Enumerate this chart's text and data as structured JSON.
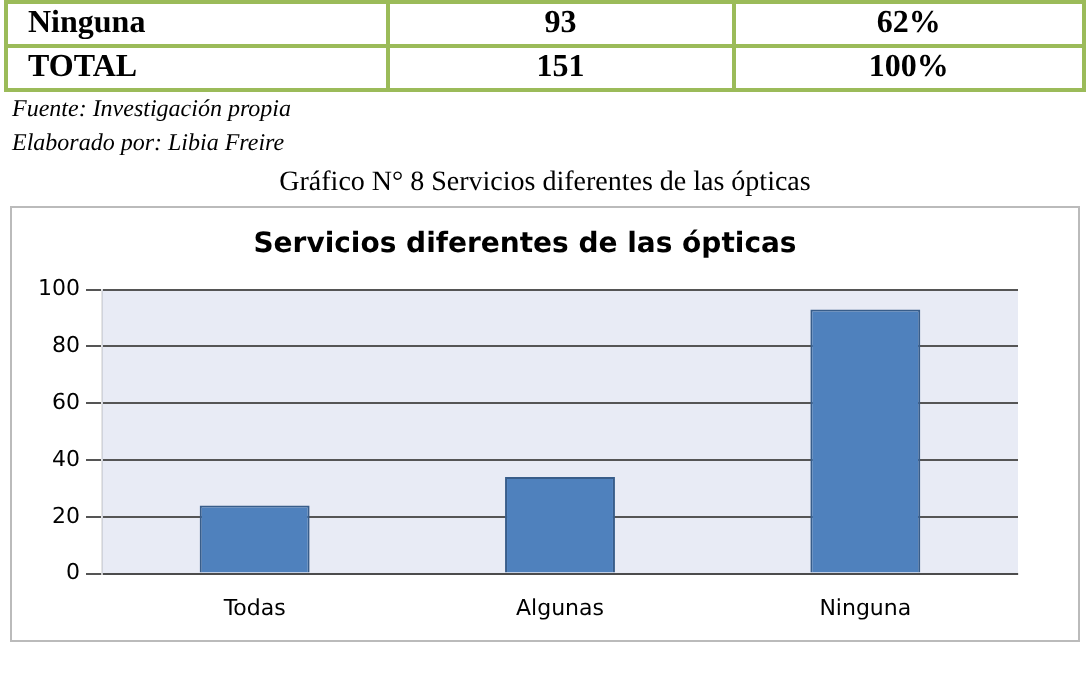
{
  "chart_data": {
    "type": "bar",
    "title": "Servicios diferentes de las ópticas",
    "categories": [
      "Todas",
      "Algunas",
      "Ninguna"
    ],
    "values": [
      24,
      34,
      93
    ],
    "color": "#4f81bd",
    "ylim": [
      0,
      100
    ],
    "yticks": [
      0,
      20,
      40,
      60,
      80,
      100
    ],
    "grid": "y",
    "annotations": [
      "Ninguna",
      "93",
      "62%",
      "TOTAL",
      "151",
      "100%",
      "Fuente: Investigación propia",
      "Elaborado por: Libia Freire",
      "Gráfico N° 8 Servicios diferentes de las ópticas"
    ]
  }
}
